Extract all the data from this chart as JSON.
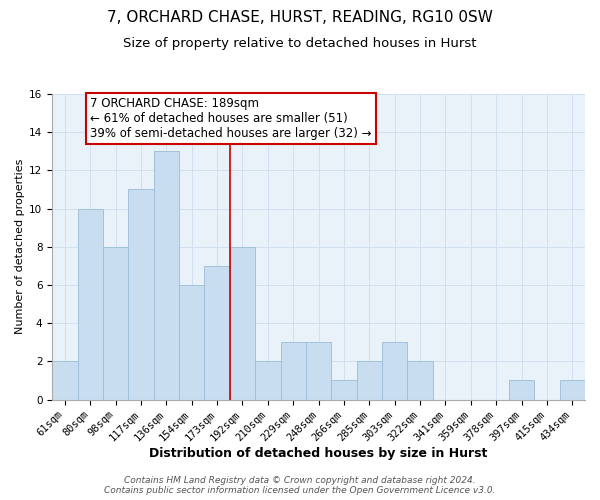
{
  "title": "7, ORCHARD CHASE, HURST, READING, RG10 0SW",
  "subtitle": "Size of property relative to detached houses in Hurst",
  "xlabel": "Distribution of detached houses by size in Hurst",
  "ylabel": "Number of detached properties",
  "bin_labels": [
    "61sqm",
    "80sqm",
    "98sqm",
    "117sqm",
    "136sqm",
    "154sqm",
    "173sqm",
    "192sqm",
    "210sqm",
    "229sqm",
    "248sqm",
    "266sqm",
    "285sqm",
    "303sqm",
    "322sqm",
    "341sqm",
    "359sqm",
    "378sqm",
    "397sqm",
    "415sqm",
    "434sqm"
  ],
  "bar_values": [
    2,
    10,
    8,
    11,
    13,
    6,
    7,
    8,
    2,
    3,
    3,
    1,
    2,
    3,
    2,
    0,
    0,
    0,
    1,
    0,
    1
  ],
  "bar_color": "#c8ddef",
  "bar_edge_color": "#9bbdd6",
  "highlight_line_color": "#cc0000",
  "annotation_box_text": "7 ORCHARD CHASE: 189sqm\n← 61% of detached houses are smaller (51)\n39% of semi-detached houses are larger (32) →",
  "annotation_box_edge_color": "#cc0000",
  "ylim": [
    0,
    16
  ],
  "yticks": [
    0,
    2,
    4,
    6,
    8,
    10,
    12,
    14,
    16
  ],
  "grid_color": "#d0e0ee",
  "footer_text": "Contains HM Land Registry data © Crown copyright and database right 2024.\nContains public sector information licensed under the Open Government Licence v3.0.",
  "plot_bg_color": "#e8f2f8",
  "fig_bg_color": "#ffffff",
  "title_fontsize": 11,
  "subtitle_fontsize": 9.5,
  "xlabel_fontsize": 9,
  "ylabel_fontsize": 8,
  "tick_fontsize": 7.5,
  "annotation_fontsize": 8.5,
  "footer_fontsize": 6.5
}
